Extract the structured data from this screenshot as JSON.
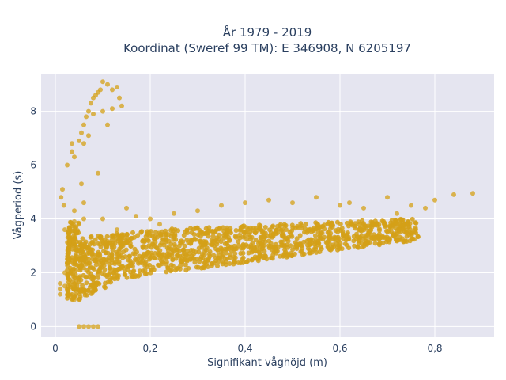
{
  "chart_data": {
    "type": "scatter",
    "title_line1": "År 1979 - 2019",
    "title_line2": "Koordinat (Sweref 99 TM): E 346908, N 6205197",
    "xlabel": "Signifikant våghöjd (m)",
    "ylabel": "Vågperiod (s)",
    "xlim": [
      -0.03,
      0.925
    ],
    "ylim": [
      -0.4,
      9.4
    ],
    "x_ticks": [
      0,
      0.2,
      0.4,
      0.6,
      0.8
    ],
    "x_tick_labels": [
      "0",
      "0,2",
      "0,4",
      "0,6",
      "0,8"
    ],
    "y_ticks": [
      0,
      2,
      4,
      6,
      8
    ],
    "y_tick_labels": [
      "0",
      "2",
      "4",
      "6",
      "8"
    ],
    "grid": true,
    "colors": {
      "marker": "#d4a017",
      "plot_bg": "#e5e5f0",
      "grid": "#ffffff"
    },
    "series": [
      {
        "marker_opacity": 0.75,
        "points": [
          [
            0.01,
            1.2
          ],
          [
            0.01,
            1.4
          ],
          [
            0.01,
            1.6
          ],
          [
            0.012,
            4.8
          ],
          [
            0.015,
            5.1
          ],
          [
            0.018,
            4.5
          ],
          [
            0.02,
            1.5
          ],
          [
            0.02,
            2.0
          ],
          [
            0.02,
            3.6
          ],
          [
            0.025,
            6.0
          ],
          [
            0.03,
            2.5
          ],
          [
            0.03,
            3.2
          ],
          [
            0.035,
            6.5
          ],
          [
            0.035,
            6.8
          ],
          [
            0.04,
            6.3
          ],
          [
            0.04,
            4.3
          ],
          [
            0.04,
            1.0
          ],
          [
            0.045,
            2.8
          ],
          [
            0.05,
            0.0
          ],
          [
            0.06,
            0.0
          ],
          [
            0.07,
            0.0
          ],
          [
            0.08,
            0.0
          ],
          [
            0.09,
            0.0
          ],
          [
            0.05,
            6.9
          ],
          [
            0.055,
            7.2
          ],
          [
            0.06,
            7.5
          ],
          [
            0.065,
            7.8
          ],
          [
            0.07,
            8.0
          ],
          [
            0.075,
            8.3
          ],
          [
            0.08,
            8.5
          ],
          [
            0.085,
            8.6
          ],
          [
            0.09,
            8.7
          ],
          [
            0.095,
            8.8
          ],
          [
            0.1,
            9.1
          ],
          [
            0.11,
            9.0
          ],
          [
            0.12,
            8.8
          ],
          [
            0.13,
            8.9
          ],
          [
            0.135,
            8.5
          ],
          [
            0.14,
            8.2
          ],
          [
            0.1,
            8.0
          ],
          [
            0.11,
            7.5
          ],
          [
            0.12,
            8.1
          ],
          [
            0.09,
            5.7
          ],
          [
            0.06,
            6.8
          ],
          [
            0.07,
            7.1
          ],
          [
            0.08,
            7.9
          ],
          [
            0.055,
            5.3
          ],
          [
            0.06,
            4.6
          ],
          [
            0.05,
            3.8
          ],
          [
            0.04,
            3.9
          ],
          [
            0.06,
            4.0
          ],
          [
            0.1,
            4.0
          ],
          [
            0.13,
            3.6
          ],
          [
            0.15,
            4.4
          ],
          [
            0.17,
            4.1
          ],
          [
            0.2,
            4.0
          ],
          [
            0.22,
            3.8
          ],
          [
            0.25,
            4.2
          ],
          [
            0.3,
            4.3
          ],
          [
            0.35,
            4.5
          ],
          [
            0.4,
            4.6
          ],
          [
            0.45,
            4.7
          ],
          [
            0.5,
            4.6
          ],
          [
            0.55,
            4.8
          ],
          [
            0.6,
            4.5
          ],
          [
            0.65,
            4.4
          ],
          [
            0.7,
            4.8
          ],
          [
            0.75,
            4.5
          ],
          [
            0.8,
            4.7
          ],
          [
            0.84,
            4.9
          ],
          [
            0.88,
            4.95
          ],
          [
            0.62,
            4.6
          ],
          [
            0.78,
            4.4
          ],
          [
            0.72,
            4.2
          ]
        ]
      }
    ]
  }
}
